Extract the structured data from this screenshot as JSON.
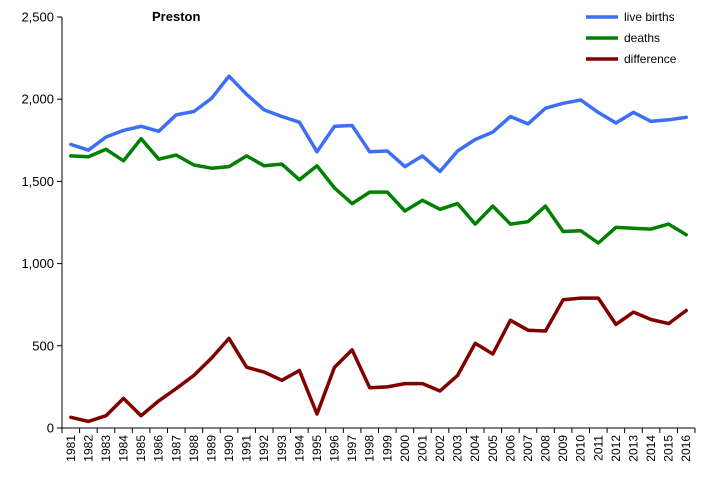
{
  "chart_data": {
    "type": "line",
    "title": "Preston",
    "xlabel": "",
    "ylabel": "",
    "ylim": [
      0,
      2500
    ],
    "yticks": [
      0,
      500,
      1000,
      1500,
      2000,
      2500
    ],
    "ytick_labels": [
      "0",
      "500",
      "1,000",
      "1,500",
      "2,000",
      "2,500"
    ],
    "grid": false,
    "legend_position": "top-right",
    "x": [
      "1981",
      "1982",
      "1983",
      "1984",
      "1985",
      "1986",
      "1987",
      "1988",
      "1989",
      "1990",
      "1991",
      "1992",
      "1993",
      "1994",
      "1995",
      "1996",
      "1997",
      "1998",
      "1999",
      "2000",
      "2001",
      "2002",
      "2003",
      "2004",
      "2005",
      "2006",
      "2007",
      "2008",
      "2009",
      "2010",
      "2011",
      "2012",
      "2013",
      "2014",
      "2015",
      "2016"
    ],
    "series": [
      {
        "name": "live births",
        "color": "#3d6ef5",
        "values": [
          1725,
          1690,
          1770,
          1810,
          1835,
          1805,
          1905,
          1925,
          2005,
          2140,
          2030,
          1935,
          1895,
          1860,
          1680,
          1835,
          1840,
          1680,
          1685,
          1590,
          1655,
          1560,
          1685,
          1755,
          1800,
          1895,
          1850,
          1945,
          1975,
          1995,
          1920,
          1855,
          1920,
          1865,
          1875,
          1890
        ]
      },
      {
        "name": "deaths",
        "color": "#008000",
        "values": [
          1655,
          1650,
          1695,
          1625,
          1760,
          1635,
          1660,
          1600,
          1580,
          1590,
          1655,
          1595,
          1605,
          1510,
          1595,
          1460,
          1365,
          1435,
          1435,
          1320,
          1385,
          1330,
          1365,
          1240,
          1350,
          1240,
          1255,
          1350,
          1195,
          1200,
          1125,
          1220,
          1215,
          1210,
          1240,
          1175
        ]
      },
      {
        "name": "difference",
        "color": "#800000",
        "values": [
          65,
          40,
          75,
          180,
          75,
          165,
          240,
          320,
          425,
          545,
          370,
          340,
          290,
          350,
          85,
          370,
          475,
          245,
          250,
          270,
          270,
          225,
          320,
          515,
          450,
          655,
          595,
          590,
          780,
          790,
          790,
          630,
          705,
          660,
          635,
          715
        ]
      }
    ]
  }
}
